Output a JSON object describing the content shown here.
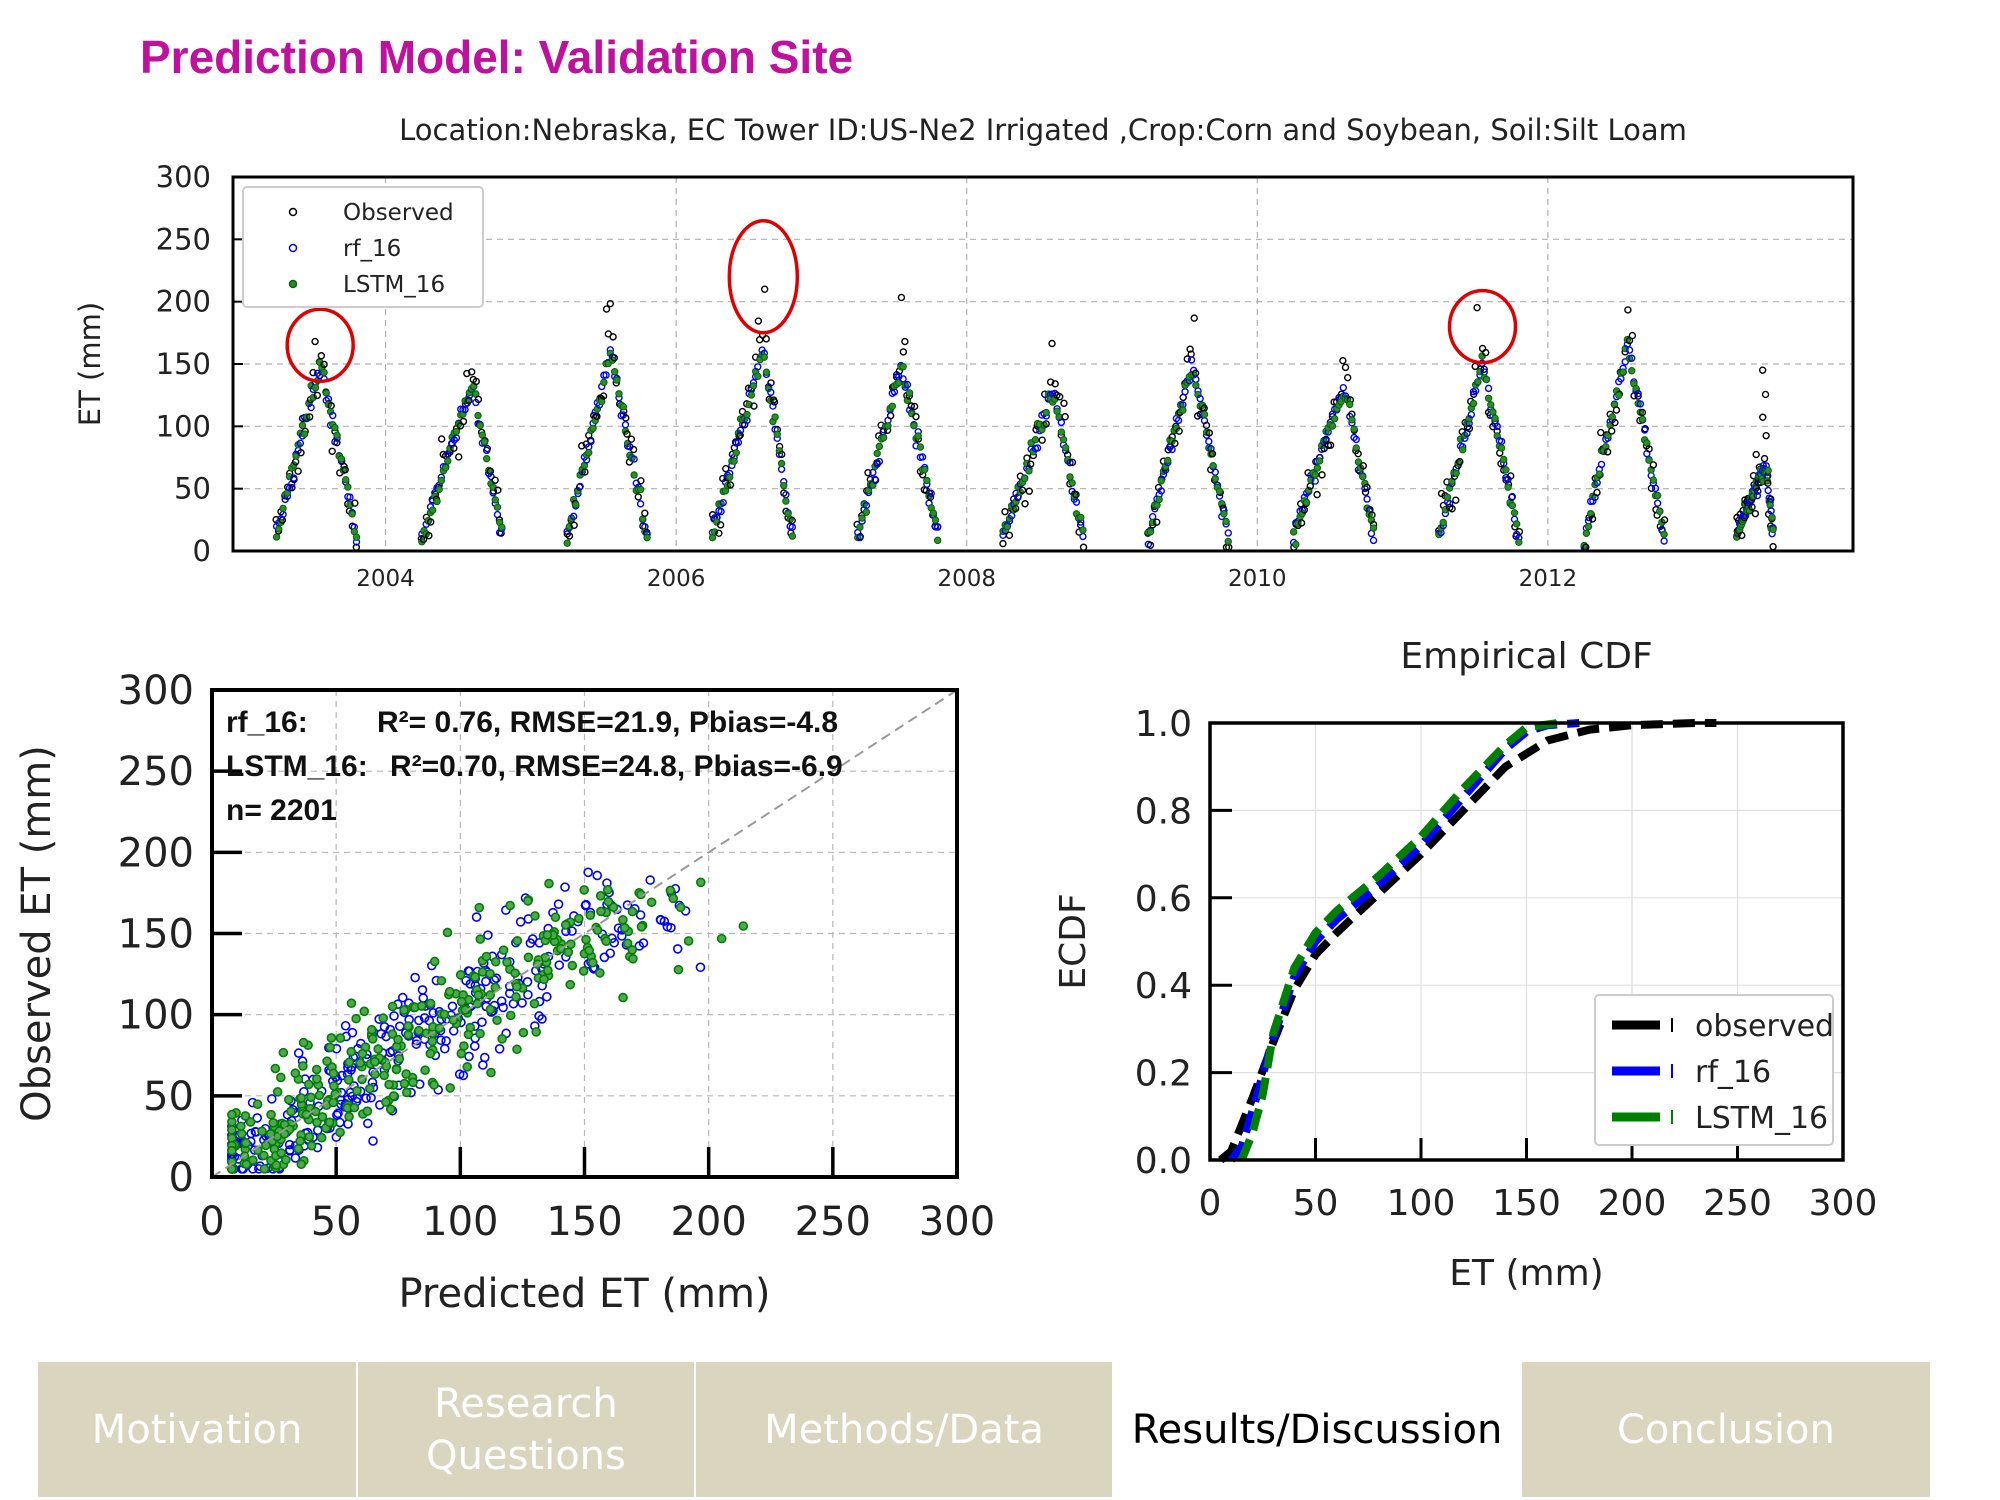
{
  "slide_title": "Prediction Model: Validation Site",
  "nav": [
    {
      "label": "Motivation",
      "active": false
    },
    {
      "label": "Research Questions",
      "active": false
    },
    {
      "label": "Methods/Data",
      "active": false
    },
    {
      "label": "Results/Discussion",
      "active": true
    },
    {
      "label": "Conclusion",
      "active": false
    }
  ],
  "chart_data": [
    {
      "type": "scatter",
      "title": "Location:Nebraska, EC Tower ID:US-Ne2 Irrigated ,Crop:Corn and Soybean, Soil:Silt Loam",
      "xlabel": "",
      "ylabel": "ET (mm)",
      "xlim": [
        2002.95,
        2014.1
      ],
      "ylim": [
        0,
        300
      ],
      "x_ticks": [
        2004,
        2006,
        2008,
        2010,
        2012
      ],
      "y_ticks": [
        0,
        50,
        100,
        150,
        200,
        250,
        300
      ],
      "grid": true,
      "legend": "top-left",
      "series": [
        {
          "name": "Observed",
          "color": "#000000"
        },
        {
          "name": "rf_16",
          "color": "#0000ff"
        },
        {
          "name": "LSTM_16",
          "color": "#008000"
        }
      ],
      "seasons": [
        {
          "start": 2003.25,
          "end": 2003.8,
          "peak_time": 2003.55,
          "peak_obs": 180,
          "peak_model": 150
        },
        {
          "start": 2004.25,
          "end": 2004.8,
          "peak_time": 2004.6,
          "peak_obs": 155,
          "peak_model": 135
        },
        {
          "start": 2005.25,
          "end": 2005.8,
          "peak_time": 2005.55,
          "peak_obs": 200,
          "peak_model": 160
        },
        {
          "start": 2006.25,
          "end": 2006.8,
          "peak_time": 2006.6,
          "peak_obs": 240,
          "peak_model": 160
        },
        {
          "start": 2007.25,
          "end": 2007.8,
          "peak_time": 2007.55,
          "peak_obs": 185,
          "peak_model": 150
        },
        {
          "start": 2008.25,
          "end": 2008.8,
          "peak_time": 2008.6,
          "peak_obs": 170,
          "peak_model": 130
        },
        {
          "start": 2009.25,
          "end": 2009.8,
          "peak_time": 2009.55,
          "peak_obs": 180,
          "peak_model": 150
        },
        {
          "start": 2010.25,
          "end": 2010.8,
          "peak_time": 2010.6,
          "peak_obs": 160,
          "peak_model": 135
        },
        {
          "start": 2011.25,
          "end": 2011.8,
          "peak_time": 2011.55,
          "peak_obs": 200,
          "peak_model": 150
        },
        {
          "start": 2012.25,
          "end": 2012.8,
          "peak_time": 2012.55,
          "peak_obs": 195,
          "peak_model": 165
        },
        {
          "start": 2013.3,
          "end": 2013.55,
          "peak_time": 2013.5,
          "peak_obs": 140,
          "peak_model": 70
        }
      ],
      "highlights": [
        {
          "x": 2003.55,
          "y": 165
        },
        {
          "x": 2006.6,
          "y": 220
        },
        {
          "x": 2011.55,
          "y": 180
        }
      ]
    },
    {
      "type": "scatter",
      "title": "",
      "xlabel": "Predicted ET (mm)",
      "ylabel": "Observed ET (mm)",
      "xlim": [
        0,
        300
      ],
      "ylim": [
        0,
        300
      ],
      "x_ticks": [
        0,
        50,
        100,
        150,
        200,
        250,
        300
      ],
      "y_ticks": [
        0,
        50,
        100,
        150,
        200,
        250,
        300
      ],
      "grid": true,
      "one_to_one_line": true,
      "annotations": [
        {
          "label": "rf_16:",
          "stats": "R²= 0.76, RMSE=21.9, Pbias=-4.8"
        },
        {
          "label": "LSTM_16:",
          "stats": "R²=0.70, RMSE=24.8, Pbias=-6.9"
        },
        {
          "label": "n= 2201",
          "stats": ""
        }
      ],
      "series": [
        {
          "name": "rf_16",
          "color": "#0000ff",
          "n": 2201,
          "range": [
            10,
            175
          ]
        },
        {
          "name": "LSTM_16",
          "color": "#008000",
          "n": 2201,
          "range": [
            10,
            170
          ]
        }
      ]
    },
    {
      "type": "line",
      "title": "Empirical CDF",
      "xlabel": "ET (mm)",
      "ylabel": "ECDF",
      "xlim": [
        0,
        300
      ],
      "ylim": [
        0,
        1.0
      ],
      "x_ticks": [
        0,
        50,
        100,
        150,
        200,
        250,
        300
      ],
      "y_ticks": [
        "0.0",
        "0.2",
        "0.4",
        "0.6",
        "0.8",
        "1.0"
      ],
      "grid": true,
      "legend": "bottom-right",
      "series": [
        {
          "name": "observed",
          "color": "#000000",
          "x": [
            5,
            10,
            20,
            30,
            40,
            50,
            60,
            80,
            100,
            120,
            140,
            160,
            180,
            200,
            230,
            240
          ],
          "y": [
            0,
            0.02,
            0.14,
            0.27,
            0.39,
            0.47,
            0.52,
            0.61,
            0.7,
            0.8,
            0.9,
            0.96,
            0.985,
            0.995,
            1.0,
            1.0
          ]
        },
        {
          "name": "rf_16",
          "color": "#0000ff",
          "x": [
            10,
            15,
            20,
            30,
            40,
            50,
            60,
            80,
            100,
            120,
            140,
            150,
            160,
            175
          ],
          "y": [
            0,
            0.03,
            0.11,
            0.28,
            0.42,
            0.5,
            0.55,
            0.63,
            0.72,
            0.83,
            0.94,
            0.98,
            0.995,
            1.0
          ]
        },
        {
          "name": "LSTM_16",
          "color": "#008000",
          "x": [
            15,
            20,
            25,
            30,
            40,
            50,
            60,
            80,
            100,
            120,
            140,
            150,
            165
          ],
          "y": [
            0,
            0.06,
            0.15,
            0.29,
            0.44,
            0.52,
            0.57,
            0.65,
            0.74,
            0.85,
            0.95,
            0.99,
            1.0
          ]
        }
      ]
    }
  ]
}
